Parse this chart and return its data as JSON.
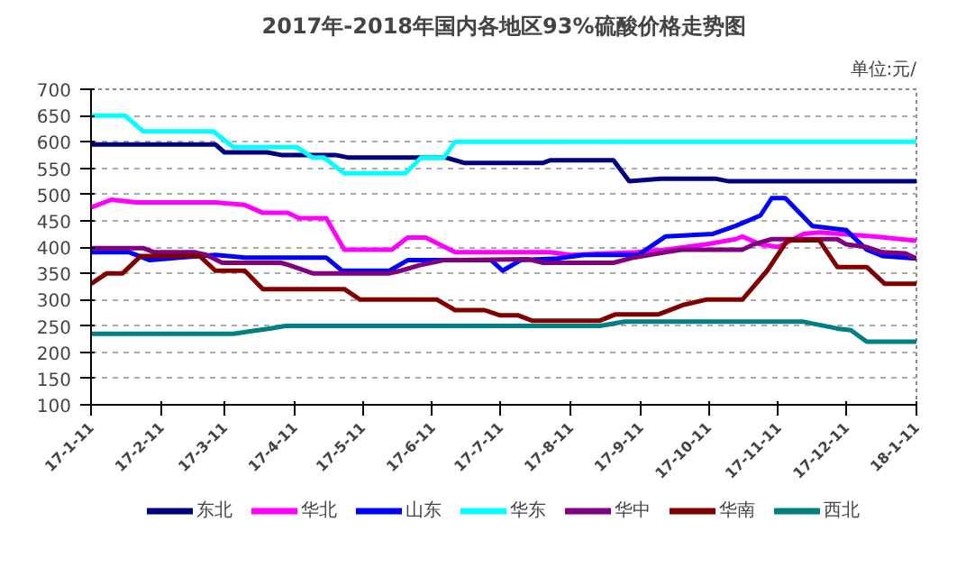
{
  "chart_data": {
    "type": "line",
    "title": "2017年-2018年国内各地区93%硫酸价格走势图",
    "annotations": [
      "单位:元/"
    ],
    "xlim": [
      "2017-01-11",
      "2018-01-11"
    ],
    "xticks": [
      {
        "value": "2017-01-11",
        "label": "17-1-11"
      },
      {
        "value": "2017-02-11",
        "label": "17-2-11"
      },
      {
        "value": "2017-03-11",
        "label": "17-3-11"
      },
      {
        "value": "2017-04-11",
        "label": "17-4-11"
      },
      {
        "value": "2017-05-11",
        "label": "17-5-11"
      },
      {
        "value": "2017-06-11",
        "label": "17-6-11"
      },
      {
        "value": "2017-07-11",
        "label": "17-7-11"
      },
      {
        "value": "2017-08-11",
        "label": "17-8-11"
      },
      {
        "value": "2017-09-11",
        "label": "17-9-11"
      },
      {
        "value": "2017-10-11",
        "label": "17-10-11"
      },
      {
        "value": "2017-11-11",
        "label": "17-11-11"
      },
      {
        "value": "2017-12-11",
        "label": "17-12-11"
      },
      {
        "value": "2018-01-11",
        "label": "18-1-11"
      }
    ],
    "ylim": [
      100,
      700
    ],
    "yticks": [
      100,
      150,
      200,
      250,
      300,
      350,
      400,
      450,
      500,
      550,
      600,
      650,
      700
    ],
    "grid": "y",
    "legend": "bottom",
    "marker": "none",
    "line_style": "solid",
    "series": [
      {
        "name": "东北",
        "color": "#000080",
        "x": [
          "2017-01-11",
          "2017-03-07",
          "2017-03-11",
          "2017-03-30",
          "2017-04-05",
          "2017-04-29",
          "2017-05-05",
          "2017-06-17",
          "2017-06-25",
          "2017-07-30",
          "2017-08-02",
          "2017-08-30",
          "2017-09-06",
          "2017-09-20",
          "2017-10-14",
          "2017-10-20",
          "2018-01-11"
        ],
        "values": [
          595,
          595,
          580,
          580,
          575,
          575,
          570,
          570,
          560,
          560,
          565,
          565,
          525,
          530,
          530,
          525,
          525
        ]
      },
      {
        "name": "华北",
        "color": "#ff00ff",
        "x": [
          "2017-01-11",
          "2017-01-20",
          "2017-01-31",
          "2017-03-07",
          "2017-03-20",
          "2017-03-28",
          "2017-04-08",
          "2017-04-13",
          "2017-04-25",
          "2017-05-03",
          "2017-05-24",
          "2017-05-31",
          "2017-06-08",
          "2017-06-21",
          "2017-08-02",
          "2017-08-11",
          "2017-09-09",
          "2017-09-22",
          "2017-10-10",
          "2017-10-23",
          "2017-10-26",
          "2017-11-03",
          "2017-11-11",
          "2017-11-22",
          "2017-11-29",
          "2017-12-23",
          "2018-01-11"
        ],
        "values": [
          475,
          490,
          485,
          485,
          480,
          465,
          465,
          455,
          455,
          395,
          395,
          418,
          418,
          390,
          390,
          385,
          390,
          395,
          405,
          415,
          420,
          405,
          400,
          425,
          428,
          420,
          412
        ]
      },
      {
        "name": "山东",
        "color": "#0000ff",
        "x": [
          "2017-01-11",
          "2017-01-28",
          "2017-02-06",
          "2017-02-19",
          "2017-03-07",
          "2017-03-20",
          "2017-04-25",
          "2017-05-02",
          "2017-05-23",
          "2017-05-31",
          "2017-07-07",
          "2017-07-12",
          "2017-07-20",
          "2017-08-05",
          "2017-08-17",
          "2017-09-10",
          "2017-09-22",
          "2017-10-13",
          "2017-10-23",
          "2017-11-03",
          "2017-11-08",
          "2017-11-14",
          "2017-11-26",
          "2017-12-11",
          "2017-12-20",
          "2017-12-27",
          "2018-01-11"
        ],
        "values": [
          390,
          390,
          375,
          380,
          385,
          380,
          380,
          355,
          355,
          375,
          375,
          355,
          375,
          378,
          385,
          385,
          420,
          425,
          440,
          460,
          493,
          493,
          440,
          432,
          395,
          383,
          378
        ]
      },
      {
        "name": "华东",
        "color": "#00ffff",
        "x": [
          "2017-01-11",
          "2017-01-26",
          "2017-02-03",
          "2017-03-06",
          "2017-03-15",
          "2017-04-12",
          "2017-04-19",
          "2017-04-24",
          "2017-05-03",
          "2017-05-30",
          "2017-06-06",
          "2017-06-16",
          "2017-06-21",
          "2018-01-11"
        ],
        "values": [
          650,
          650,
          620,
          620,
          590,
          590,
          570,
          570,
          540,
          540,
          570,
          570,
          600,
          600
        ]
      },
      {
        "name": "华中",
        "color": "#800080",
        "x": [
          "2017-01-11",
          "2017-02-03",
          "2017-02-08",
          "2017-02-26",
          "2017-03-03",
          "2017-03-10",
          "2017-04-05",
          "2017-04-09",
          "2017-04-19",
          "2017-05-23",
          "2017-05-28",
          "2017-06-05",
          "2017-06-16",
          "2017-07-23",
          "2017-07-30",
          "2017-08-30",
          "2017-09-08",
          "2017-09-22",
          "2017-09-29",
          "2017-10-26",
          "2017-10-31",
          "2017-11-08",
          "2017-12-07",
          "2017-12-11",
          "2017-12-20",
          "2017-12-27",
          "2018-01-06",
          "2018-01-11"
        ],
        "values": [
          398,
          398,
          390,
          390,
          385,
          370,
          370,
          365,
          350,
          350,
          355,
          365,
          375,
          377,
          370,
          370,
          380,
          390,
          395,
          395,
          405,
          415,
          415,
          405,
          400,
          390,
          388,
          378
        ]
      },
      {
        "name": "华南",
        "color": "#800000",
        "x": [
          "2017-01-11",
          "2017-01-18",
          "2017-01-25",
          "2017-02-02",
          "2017-02-28",
          "2017-03-07",
          "2017-03-20",
          "2017-03-28",
          "2017-05-03",
          "2017-05-10",
          "2017-06-13",
          "2017-06-21",
          "2017-07-04",
          "2017-07-11",
          "2017-07-19",
          "2017-07-25",
          "2017-08-24",
          "2017-08-31",
          "2017-09-19",
          "2017-09-30",
          "2017-10-10",
          "2017-10-26",
          "2017-11-06",
          "2017-11-15",
          "2017-11-29",
          "2017-12-07",
          "2017-12-20",
          "2017-12-28",
          "2018-01-11"
        ],
        "values": [
          330,
          350,
          350,
          383,
          383,
          355,
          355,
          320,
          320,
          300,
          300,
          280,
          280,
          270,
          270,
          260,
          260,
          272,
          272,
          290,
          300,
          300,
          355,
          413,
          413,
          362,
          362,
          330,
          330
        ]
      },
      {
        "name": "西北",
        "color": "#008080",
        "x": [
          "2017-01-11",
          "2017-03-15",
          "2017-03-23",
          "2017-03-31",
          "2017-04-07",
          "2017-08-24",
          "2017-09-04",
          "2017-11-22",
          "2017-11-29",
          "2017-12-07",
          "2017-12-13",
          "2017-12-20",
          "2018-01-11"
        ],
        "values": [
          235,
          235,
          240,
          245,
          250,
          250,
          258,
          258,
          252,
          245,
          242,
          220,
          220
        ]
      }
    ]
  }
}
